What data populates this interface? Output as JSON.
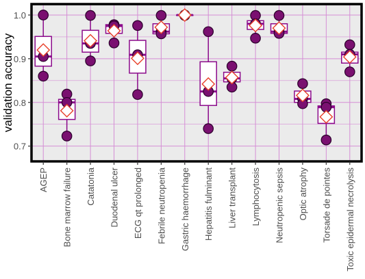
{
  "chart_data": {
    "type": "boxplot",
    "ylabel": "validation accuracy",
    "xlabel": "",
    "ylim": [
      0.665,
      1.025
    ],
    "yticks": [
      0.7,
      0.8,
      0.9,
      1.0
    ],
    "ytick_labels": [
      "0.7",
      "0.8",
      "0.9",
      "1.0"
    ],
    "grid": true,
    "categories": [
      "AGEP",
      "Bone marrow failure",
      "Catatonia",
      "Duodenal ulcer",
      "ECG qt prolonged",
      "Febrile neutropenia",
      "Gastric haemorrhage",
      "Hepatitis fulminant",
      "Liver transplant",
      "Lymphocytosis",
      "Neutropenic sepsis",
      "Optic atrophy",
      "Torsade de pointes",
      "Toxic epidermal necrolysis"
    ],
    "boxes": [
      {
        "q1": 0.883,
        "median": 0.905,
        "q3": 0.951,
        "whisker_low": 0.86,
        "whisker_high": 1.0
      },
      {
        "q1": 0.761,
        "median": 0.8,
        "q3": 0.807,
        "whisker_low": 0.723,
        "whisker_high": 0.819
      },
      {
        "q1": 0.915,
        "median": 0.935,
        "q3": 0.965,
        "whisker_low": 0.895,
        "whisker_high": 0.999
      },
      {
        "q1": 0.958,
        "median": 0.975,
        "q3": 0.978,
        "whisker_low": 0.936,
        "whisker_high": 0.978
      },
      {
        "q1": 0.867,
        "median": 0.909,
        "q3": 0.942,
        "whisker_low": 0.818,
        "whisker_high": 0.976
      },
      {
        "q1": 0.957,
        "median": 0.962,
        "q3": 0.98,
        "whisker_low": 0.957,
        "whisker_high": 0.999
      },
      {
        "q1": 0.999,
        "median": 1.0,
        "q3": 1.0,
        "whisker_low": 0.999,
        "whisker_high": 1.0
      },
      {
        "q1": 0.793,
        "median": 0.825,
        "q3": 0.893,
        "whisker_low": 0.74,
        "whisker_high": 0.962
      },
      {
        "q1": 0.847,
        "median": 0.855,
        "q3": 0.869,
        "whisker_low": 0.835,
        "whisker_high": 0.883
      },
      {
        "q1": 0.967,
        "median": 0.98,
        "q3": 0.987,
        "whisker_low": 0.947,
        "whisker_high": 0.999
      },
      {
        "q1": 0.958,
        "median": 0.962,
        "q3": 0.98,
        "whisker_low": 0.958,
        "whisker_high": 0.999
      },
      {
        "q1": 0.8,
        "median": 0.808,
        "q3": 0.826,
        "whisker_low": 0.797,
        "whisker_high": 0.843
      },
      {
        "q1": 0.752,
        "median": 0.789,
        "q3": 0.792,
        "whisker_low": 0.714,
        "whisker_high": 0.797
      },
      {
        "q1": 0.89,
        "median": 0.91,
        "q3": 0.915,
        "whisker_low": 0.87,
        "whisker_high": 0.932
      }
    ],
    "points": [
      [
        1.0,
        0.905,
        0.86
      ],
      [
        0.819,
        0.8,
        0.723
      ],
      [
        0.999,
        0.935,
        0.895
      ],
      [
        0.978,
        0.975,
        0.936
      ],
      [
        0.976,
        0.909,
        0.818
      ],
      [
        0.999,
        0.962,
        0.957
      ],
      [
        1.0,
        1.0,
        0.999
      ],
      [
        0.962,
        0.825,
        0.74
      ],
      [
        0.883,
        0.855,
        0.835
      ],
      [
        0.999,
        0.98,
        0.947
      ],
      [
        0.999,
        0.962,
        0.958
      ],
      [
        0.843,
        0.808,
        0.797
      ],
      [
        0.797,
        0.789,
        0.714
      ],
      [
        0.932,
        0.91,
        0.87
      ]
    ],
    "means": [
      0.92,
      0.781,
      0.941,
      0.964,
      0.901,
      0.972,
      1.0,
      0.842,
      0.857,
      0.976,
      0.97,
      0.816,
      0.767,
      0.904
    ],
    "colors": {
      "box_stroke": "#8b0a8b",
      "point_fill": "#7a1070",
      "point_stroke": "#2a002a",
      "mean_fill": "#ffffff",
      "mean_stroke": "#e8402a",
      "grid_line": "#d58ed5",
      "panel_bg": "#ebebeb",
      "frame": "#000000"
    }
  }
}
